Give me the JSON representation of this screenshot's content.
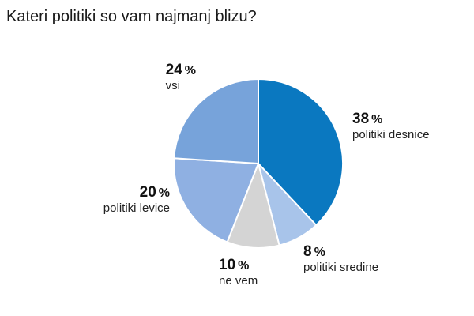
{
  "chart_data": {
    "type": "pie",
    "title": "Kateri politiki so vam najmanj blizu?",
    "unit": "%",
    "slices": [
      {
        "label": "politiki desnice",
        "value": 38,
        "color": "#0a78c0"
      },
      {
        "label": "politiki sredine",
        "value": 8,
        "color": "#a8c4ea"
      },
      {
        "label": "ne vem",
        "value": 10,
        "color": "#d4d4d4"
      },
      {
        "label": "politiki levice",
        "value": 20,
        "color": "#8fb0e2"
      },
      {
        "label": "vsi",
        "value": 24,
        "color": "#77a3da"
      }
    ]
  }
}
